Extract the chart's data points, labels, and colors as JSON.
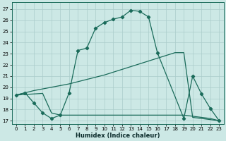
{
  "xlabel": "Humidex (Indice chaleur)",
  "bg_color": "#cce8e5",
  "grid_color": "#aaccca",
  "line_color": "#1a6b5a",
  "xlim": [
    -0.5,
    23.5
  ],
  "ylim": [
    16.7,
    27.6
  ],
  "yticks": [
    17,
    18,
    19,
    20,
    21,
    22,
    23,
    24,
    25,
    26,
    27
  ],
  "xticks": [
    0,
    1,
    2,
    3,
    4,
    5,
    6,
    7,
    8,
    9,
    10,
    11,
    12,
    13,
    14,
    15,
    16,
    17,
    18,
    19,
    20,
    21,
    22,
    23
  ],
  "curve1_x": [
    0,
    1,
    2,
    3,
    4,
    5,
    6,
    7,
    8,
    9,
    10,
    11,
    12,
    13,
    14,
    15,
    16,
    19,
    20,
    21,
    22,
    23
  ],
  "curve1_y": [
    19.3,
    19.5,
    18.6,
    17.7,
    17.2,
    17.5,
    19.5,
    23.3,
    23.5,
    25.3,
    25.8,
    26.1,
    26.3,
    26.9,
    26.8,
    26.3,
    23.1,
    17.2,
    21.0,
    19.4,
    18.1,
    17.0
  ],
  "curve2_x": [
    0,
    1,
    2,
    3,
    4,
    5,
    6,
    7,
    8,
    9,
    10,
    11,
    12,
    13,
    14,
    15,
    16,
    17,
    18,
    19,
    20,
    21,
    22,
    23
  ],
  "curve2_y": [
    19.3,
    19.5,
    19.7,
    19.85,
    20.0,
    20.15,
    20.3,
    20.5,
    20.7,
    20.9,
    21.1,
    21.35,
    21.6,
    21.85,
    22.1,
    22.35,
    22.6,
    22.85,
    23.1,
    23.1,
    17.3,
    17.2,
    17.1,
    17.0
  ],
  "curve3_x": [
    0,
    1,
    2,
    3,
    4,
    5,
    6,
    7,
    8,
    9,
    10,
    11,
    12,
    13,
    14,
    15,
    16,
    17,
    18,
    19,
    22,
    23
  ],
  "curve3_y": [
    19.3,
    19.35,
    19.4,
    19.45,
    17.7,
    17.5,
    17.5,
    17.5,
    17.5,
    17.5,
    17.5,
    17.5,
    17.5,
    17.5,
    17.5,
    17.5,
    17.5,
    17.5,
    17.5,
    17.5,
    17.2,
    17.0
  ]
}
